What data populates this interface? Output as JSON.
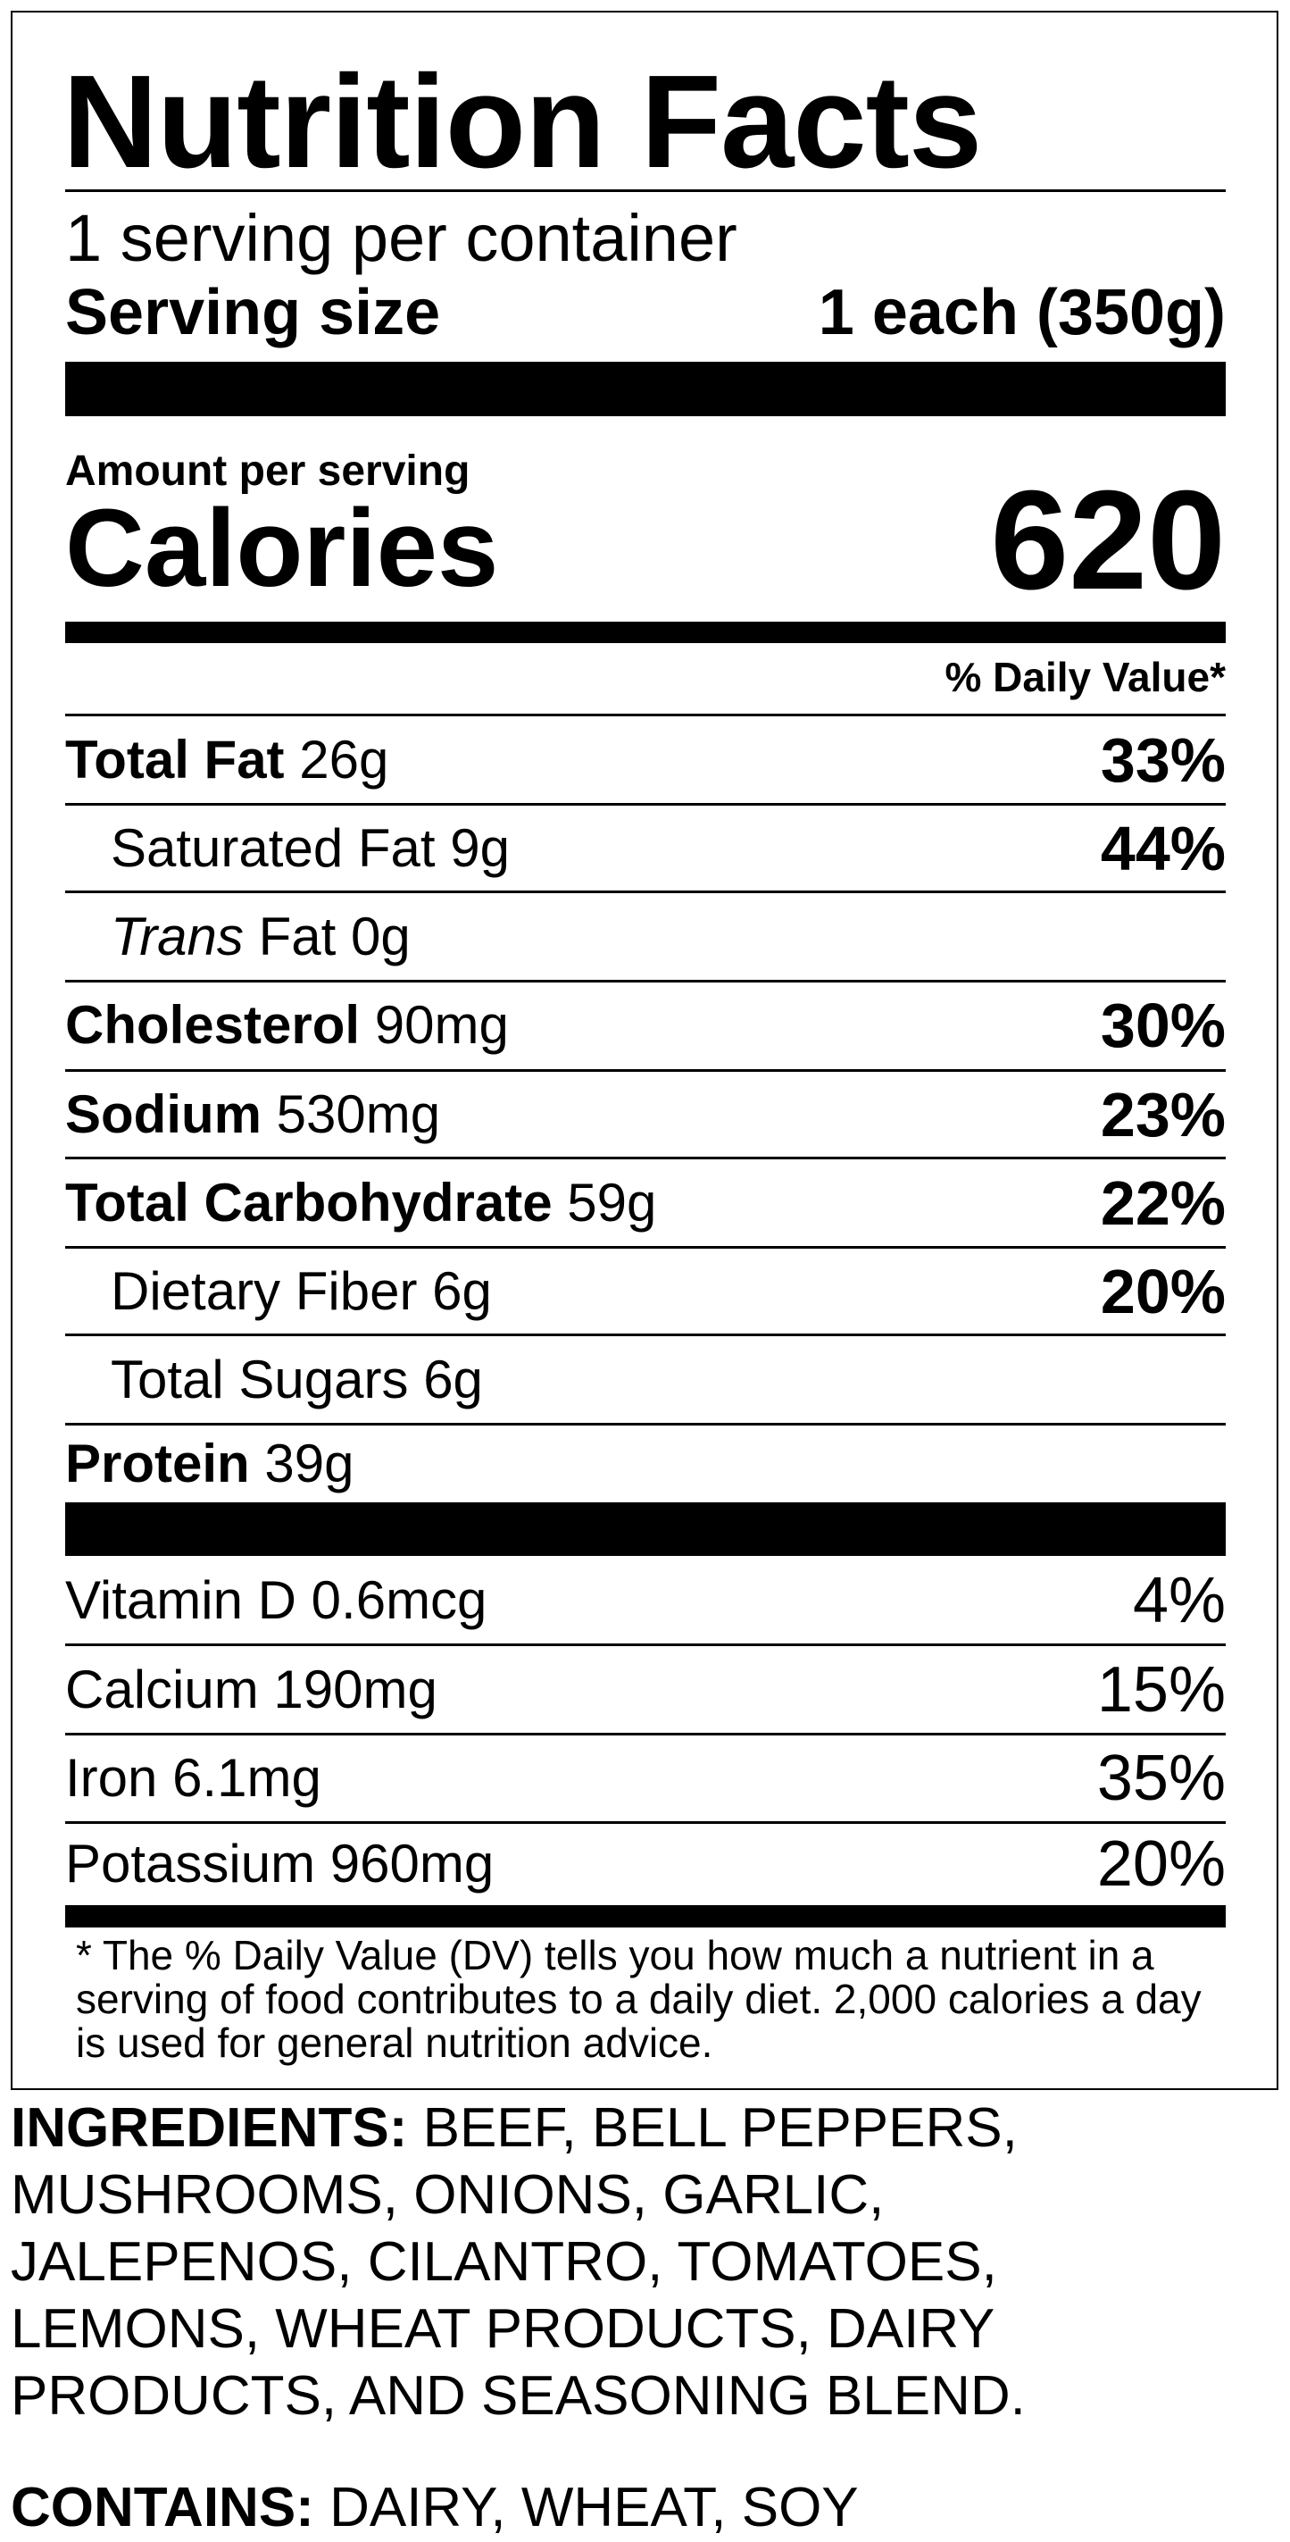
{
  "label": {
    "title": "Nutrition Facts",
    "servings_per_container": "1 serving per container",
    "serving_size_label": "Serving size",
    "serving_size_value": "1 each (350g)",
    "amount_per_serving": "Amount per serving",
    "calories_label": "Calories",
    "calories_value": "620",
    "daily_value_header": "% Daily Value*",
    "nutrients": [
      {
        "name": "Total Fat",
        "amount": "26g",
        "dv": "33%"
      },
      {
        "name": "Saturated Fat",
        "amount": "9g",
        "dv": "44%"
      },
      {
        "name_italic": "Trans",
        "name": "Fat",
        "amount": "0g",
        "dv": ""
      },
      {
        "name": "Cholesterol",
        "amount": "90mg",
        "dv": "30%"
      },
      {
        "name": "Sodium",
        "amount": "530mg",
        "dv": "23%"
      },
      {
        "name": "Total Carbohydrate",
        "amount": "59g",
        "dv": "22%"
      },
      {
        "name": "Dietary Fiber",
        "amount": "6g",
        "dv": "20%"
      },
      {
        "name": "Total Sugars",
        "amount": "6g",
        "dv": ""
      },
      {
        "name": "Protein",
        "amount": "39g",
        "dv": ""
      }
    ],
    "vitamins": [
      {
        "name": "Vitamin D",
        "amount": "0.6mcg",
        "dv": "4%"
      },
      {
        "name": "Calcium",
        "amount": "190mg",
        "dv": "15%"
      },
      {
        "name": "Iron",
        "amount": "6.1mg",
        "dv": "35%"
      },
      {
        "name": "Potassium",
        "amount": "960mg",
        "dv": "20%"
      }
    ],
    "footnote": "* The % Daily Value (DV) tells you how much a nutrient in a serving of food contributes to a daily diet. 2,000 calories a day is used for general nutrition advice."
  },
  "ingredients": {
    "label": "INGREDIENTS:",
    "text": "BEEF, BELL PEPPERS, MUSHROOMS, ONIONS, GARLIC, JALEPENOS, CILANTRO, TOMATOES, LEMONS, WHEAT PRODUCTS, DAIRY PRODUCTS, AND SEASONING BLEND."
  },
  "contains": {
    "label": "CONTAINS:",
    "text": "DAIRY, WHEAT, SOY"
  }
}
